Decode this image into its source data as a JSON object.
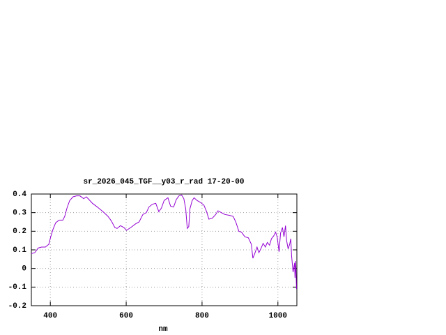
{
  "chart_data": {
    "type": "line",
    "title": "sr_2026_045_TGF__y03_r_rad 17-20-00",
    "x_label": "nm",
    "color": "#9400d3",
    "grid": true,
    "xlim": [
      350,
      1050
    ],
    "xticks": [
      400,
      600,
      800,
      1000
    ],
    "ylim": [
      -0.2,
      0.4
    ],
    "yticks": [
      -0.2,
      -0.1,
      0,
      0.1,
      0.2,
      0.3,
      0.4
    ],
    "x": [
      350,
      359,
      368,
      377,
      387,
      396,
      401,
      407,
      414,
      423,
      433,
      438,
      444,
      451,
      460,
      469,
      478,
      488,
      495,
      502,
      511,
      524,
      539,
      552,
      561,
      570,
      576,
      585,
      594,
      601,
      612,
      625,
      634,
      644,
      653,
      660,
      669,
      678,
      686,
      693,
      700,
      710,
      717,
      725,
      732,
      739,
      746,
      752,
      757,
      761,
      765,
      768,
      774,
      779,
      787,
      796,
      805,
      812,
      818,
      827,
      836,
      842,
      851,
      860,
      873,
      882,
      889,
      897,
      904,
      913,
      922,
      930,
      934,
      939,
      945,
      950,
      956,
      961,
      967,
      972,
      978,
      983,
      989,
      994,
      998,
      1003,
      1007,
      1012,
      1016,
      1020,
      1023,
      1027,
      1031,
      1034,
      1036,
      1040,
      1044,
      1045,
      1047,
      1049
    ],
    "values": [
      0.08,
      0.085,
      0.11,
      0.115,
      0.115,
      0.13,
      0.17,
      0.21,
      0.245,
      0.26,
      0.26,
      0.28,
      0.325,
      0.365,
      0.385,
      0.39,
      0.39,
      0.375,
      0.385,
      0.37,
      0.35,
      0.33,
      0.305,
      0.28,
      0.255,
      0.22,
      0.215,
      0.23,
      0.22,
      0.205,
      0.22,
      0.24,
      0.25,
      0.29,
      0.3,
      0.33,
      0.345,
      0.35,
      0.305,
      0.325,
      0.365,
      0.38,
      0.335,
      0.33,
      0.37,
      0.39,
      0.395,
      0.375,
      0.32,
      0.215,
      0.225,
      0.32,
      0.365,
      0.38,
      0.365,
      0.355,
      0.34,
      0.305,
      0.265,
      0.27,
      0.29,
      0.31,
      0.3,
      0.29,
      0.285,
      0.28,
      0.25,
      0.2,
      0.195,
      0.17,
      0.165,
      0.13,
      0.055,
      0.08,
      0.115,
      0.085,
      0.11,
      0.135,
      0.115,
      0.14,
      0.125,
      0.16,
      0.175,
      0.195,
      0.17,
      0.09,
      0.19,
      0.22,
      0.17,
      0.23,
      0.15,
      0.105,
      0.13,
      0.16,
      0.07,
      -0.02,
      0.03,
      -0.05,
      0.04,
      -0.11
    ]
  }
}
